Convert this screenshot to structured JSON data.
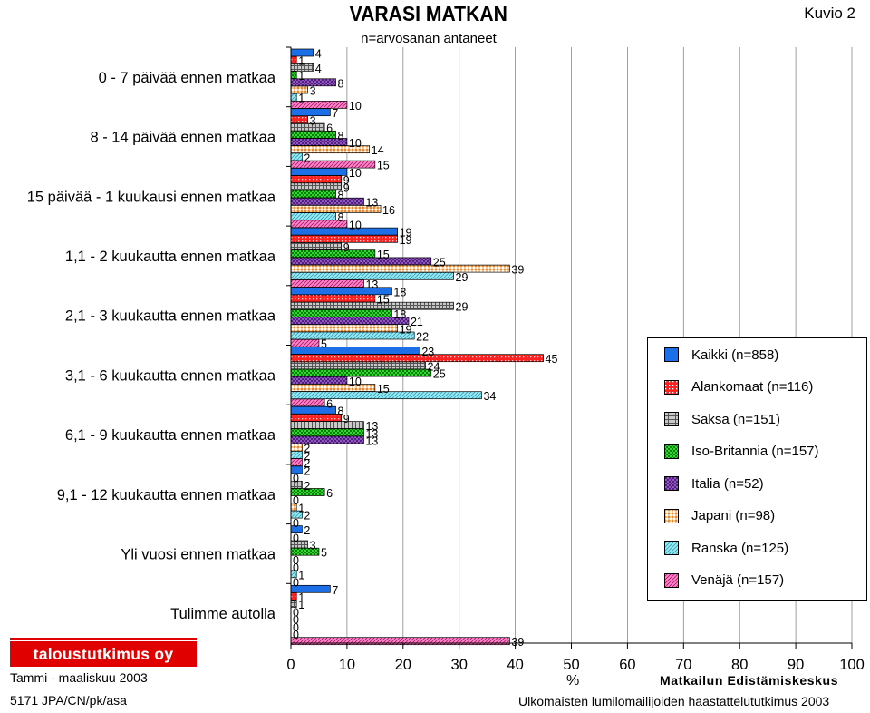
{
  "header": {
    "title": "VARASI MATKAN",
    "subtitle": "n=arvosanan antaneet",
    "figure_label": "Kuvio 2"
  },
  "footer": {
    "logo_text": "taloustutkimus oy",
    "date": "Tammi - maaliskuu 2003",
    "code": "5171 JPA/CN/pk/asa",
    "org": "Matkailun Edistämiskeskus",
    "survey": "Ulkomaisten lumilomailijoiden haastattelututkimus 2003"
  },
  "colors": {
    "Kaikki": "#1c6fe6",
    "Alankomaat": "#ff2020",
    "Saksa": "#c8c8c8",
    "Iso-Britannia": "#2ddc2d",
    "Italia": "#b060e0",
    "Japani": "#ffc890",
    "Ranska": "#9fe8f4",
    "Venaja": "#ff88cc"
  },
  "chart_data": {
    "type": "bar",
    "orientation": "horizontal",
    "title": "VARASI MATKAN",
    "subtitle": "n=arvosanan antaneet",
    "xlabel": "%",
    "xlim": [
      0,
      100
    ],
    "xticks": [
      0,
      10,
      20,
      30,
      40,
      50,
      60,
      70,
      80,
      90,
      100
    ],
    "grid": "vertical",
    "legend_position": "right",
    "categories": [
      "0 - 7 päivää ennen matkaa",
      "8 - 14 päivää ennen matkaa",
      "15 päivää - 1 kuukausi ennen matkaa",
      "1,1 - 2 kuukautta ennen matkaa",
      "2,1 - 3 kuukautta ennen matkaa",
      "3,1 - 6 kuukautta ennen matkaa",
      "6,1 - 9 kuukautta ennen matkaa",
      "9,1 - 12 kuukautta ennen matkaa",
      "Yli vuosi ennen matkaa",
      "Tulimme autolla"
    ],
    "series": [
      {
        "name": "Kaikki (n=858)",
        "key": "Kaikki",
        "pattern": "solid",
        "values": [
          4,
          7,
          10,
          19,
          18,
          23,
          8,
          2,
          2,
          7
        ]
      },
      {
        "name": "Alankomaat (n=116)",
        "key": "Alankomaat",
        "pattern": "dots",
        "values": [
          1,
          3,
          9,
          19,
          15,
          45,
          9,
          0,
          0,
          1
        ]
      },
      {
        "name": "Saksa (n=151)",
        "key": "Saksa",
        "pattern": "grid",
        "values": [
          4,
          6,
          9,
          9,
          29,
          24,
          13,
          2,
          3,
          1
        ]
      },
      {
        "name": "Iso-Britannia (n=157)",
        "key": "Iso-Britannia",
        "pattern": "checker",
        "values": [
          1,
          8,
          8,
          15,
          18,
          25,
          13,
          6,
          5,
          0
        ]
      },
      {
        "name": "Italia (n=52)",
        "key": "Italia",
        "pattern": "cross",
        "values": [
          8,
          10,
          13,
          25,
          21,
          10,
          13,
          0,
          0,
          0
        ]
      },
      {
        "name": "Japani (n=98)",
        "key": "Japani",
        "pattern": "hatch",
        "values": [
          3,
          14,
          16,
          39,
          19,
          15,
          2,
          1,
          0,
          0
        ]
      },
      {
        "name": "Ranska (n=125)",
        "key": "Ranska",
        "pattern": "diag",
        "values": [
          1,
          2,
          8,
          29,
          22,
          34,
          2,
          2,
          1,
          0
        ]
      },
      {
        "name": "Venäjä (n=157)",
        "key": "Venaja",
        "pattern": "diag",
        "values": [
          10,
          15,
          10,
          13,
          5,
          6,
          2,
          0,
          0,
          39
        ]
      }
    ]
  }
}
